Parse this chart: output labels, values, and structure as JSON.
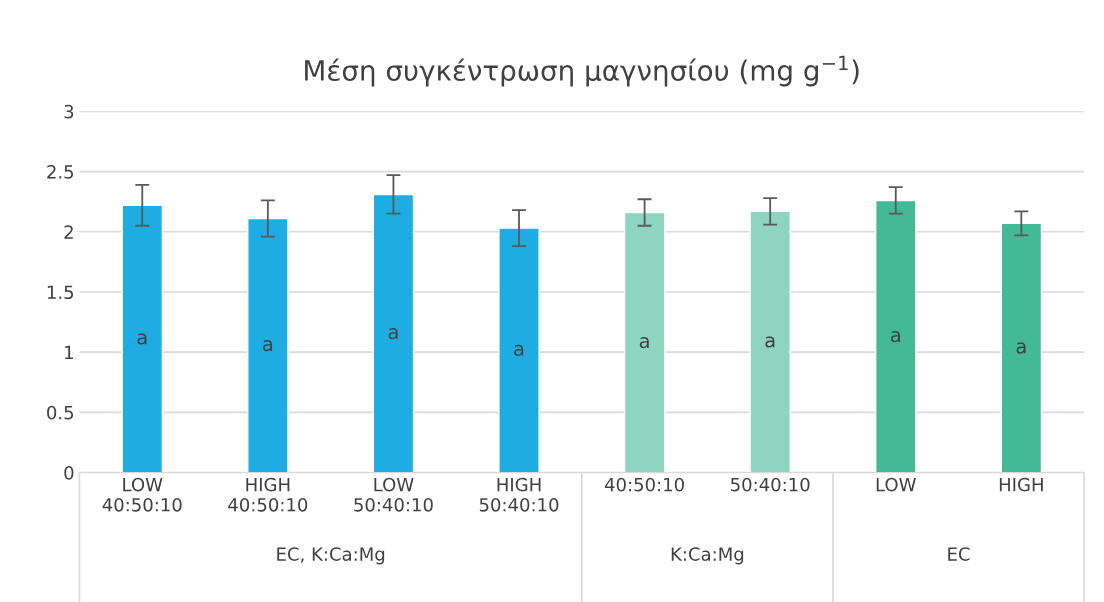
{
  "chart_data": {
    "type": "bar",
    "title": "Μέση συγκέντρωση μαγνησίου (mg g$^{−1}$)",
    "categories": [
      "LOW\n40:50:10",
      "HIGH\n40:50:10",
      "LOW\n50:40:10",
      "HIGH\n50:40:10",
      "40:50:10",
      "50:40:10",
      "LOW",
      "HIGH"
    ],
    "values": [
      2.22,
      2.11,
      2.31,
      2.03,
      2.16,
      2.17,
      2.26,
      2.07
    ],
    "errors": [
      0.17,
      0.15,
      0.16,
      0.15,
      0.11,
      0.11,
      0.11,
      0.1
    ],
    "colors": [
      "#1eace2",
      "#1eace2",
      "#1eace2",
      "#1eace2",
      "#8dd5bf",
      "#8dd5bf",
      "#43b995",
      "#43b995"
    ],
    "ylim": [
      0,
      3
    ],
    "yticks": [
      0,
      0.5,
      1,
      1.5,
      2,
      2.5,
      3
    ],
    "grid": "y",
    "legend": false,
    "value_labels": [
      "a",
      "a",
      "a",
      "a",
      "a",
      "a",
      "a",
      "a"
    ],
    "annotations": [
      "EC, K:Ca:Mg",
      "K:Ca:Mg",
      "EC"
    ]
  }
}
